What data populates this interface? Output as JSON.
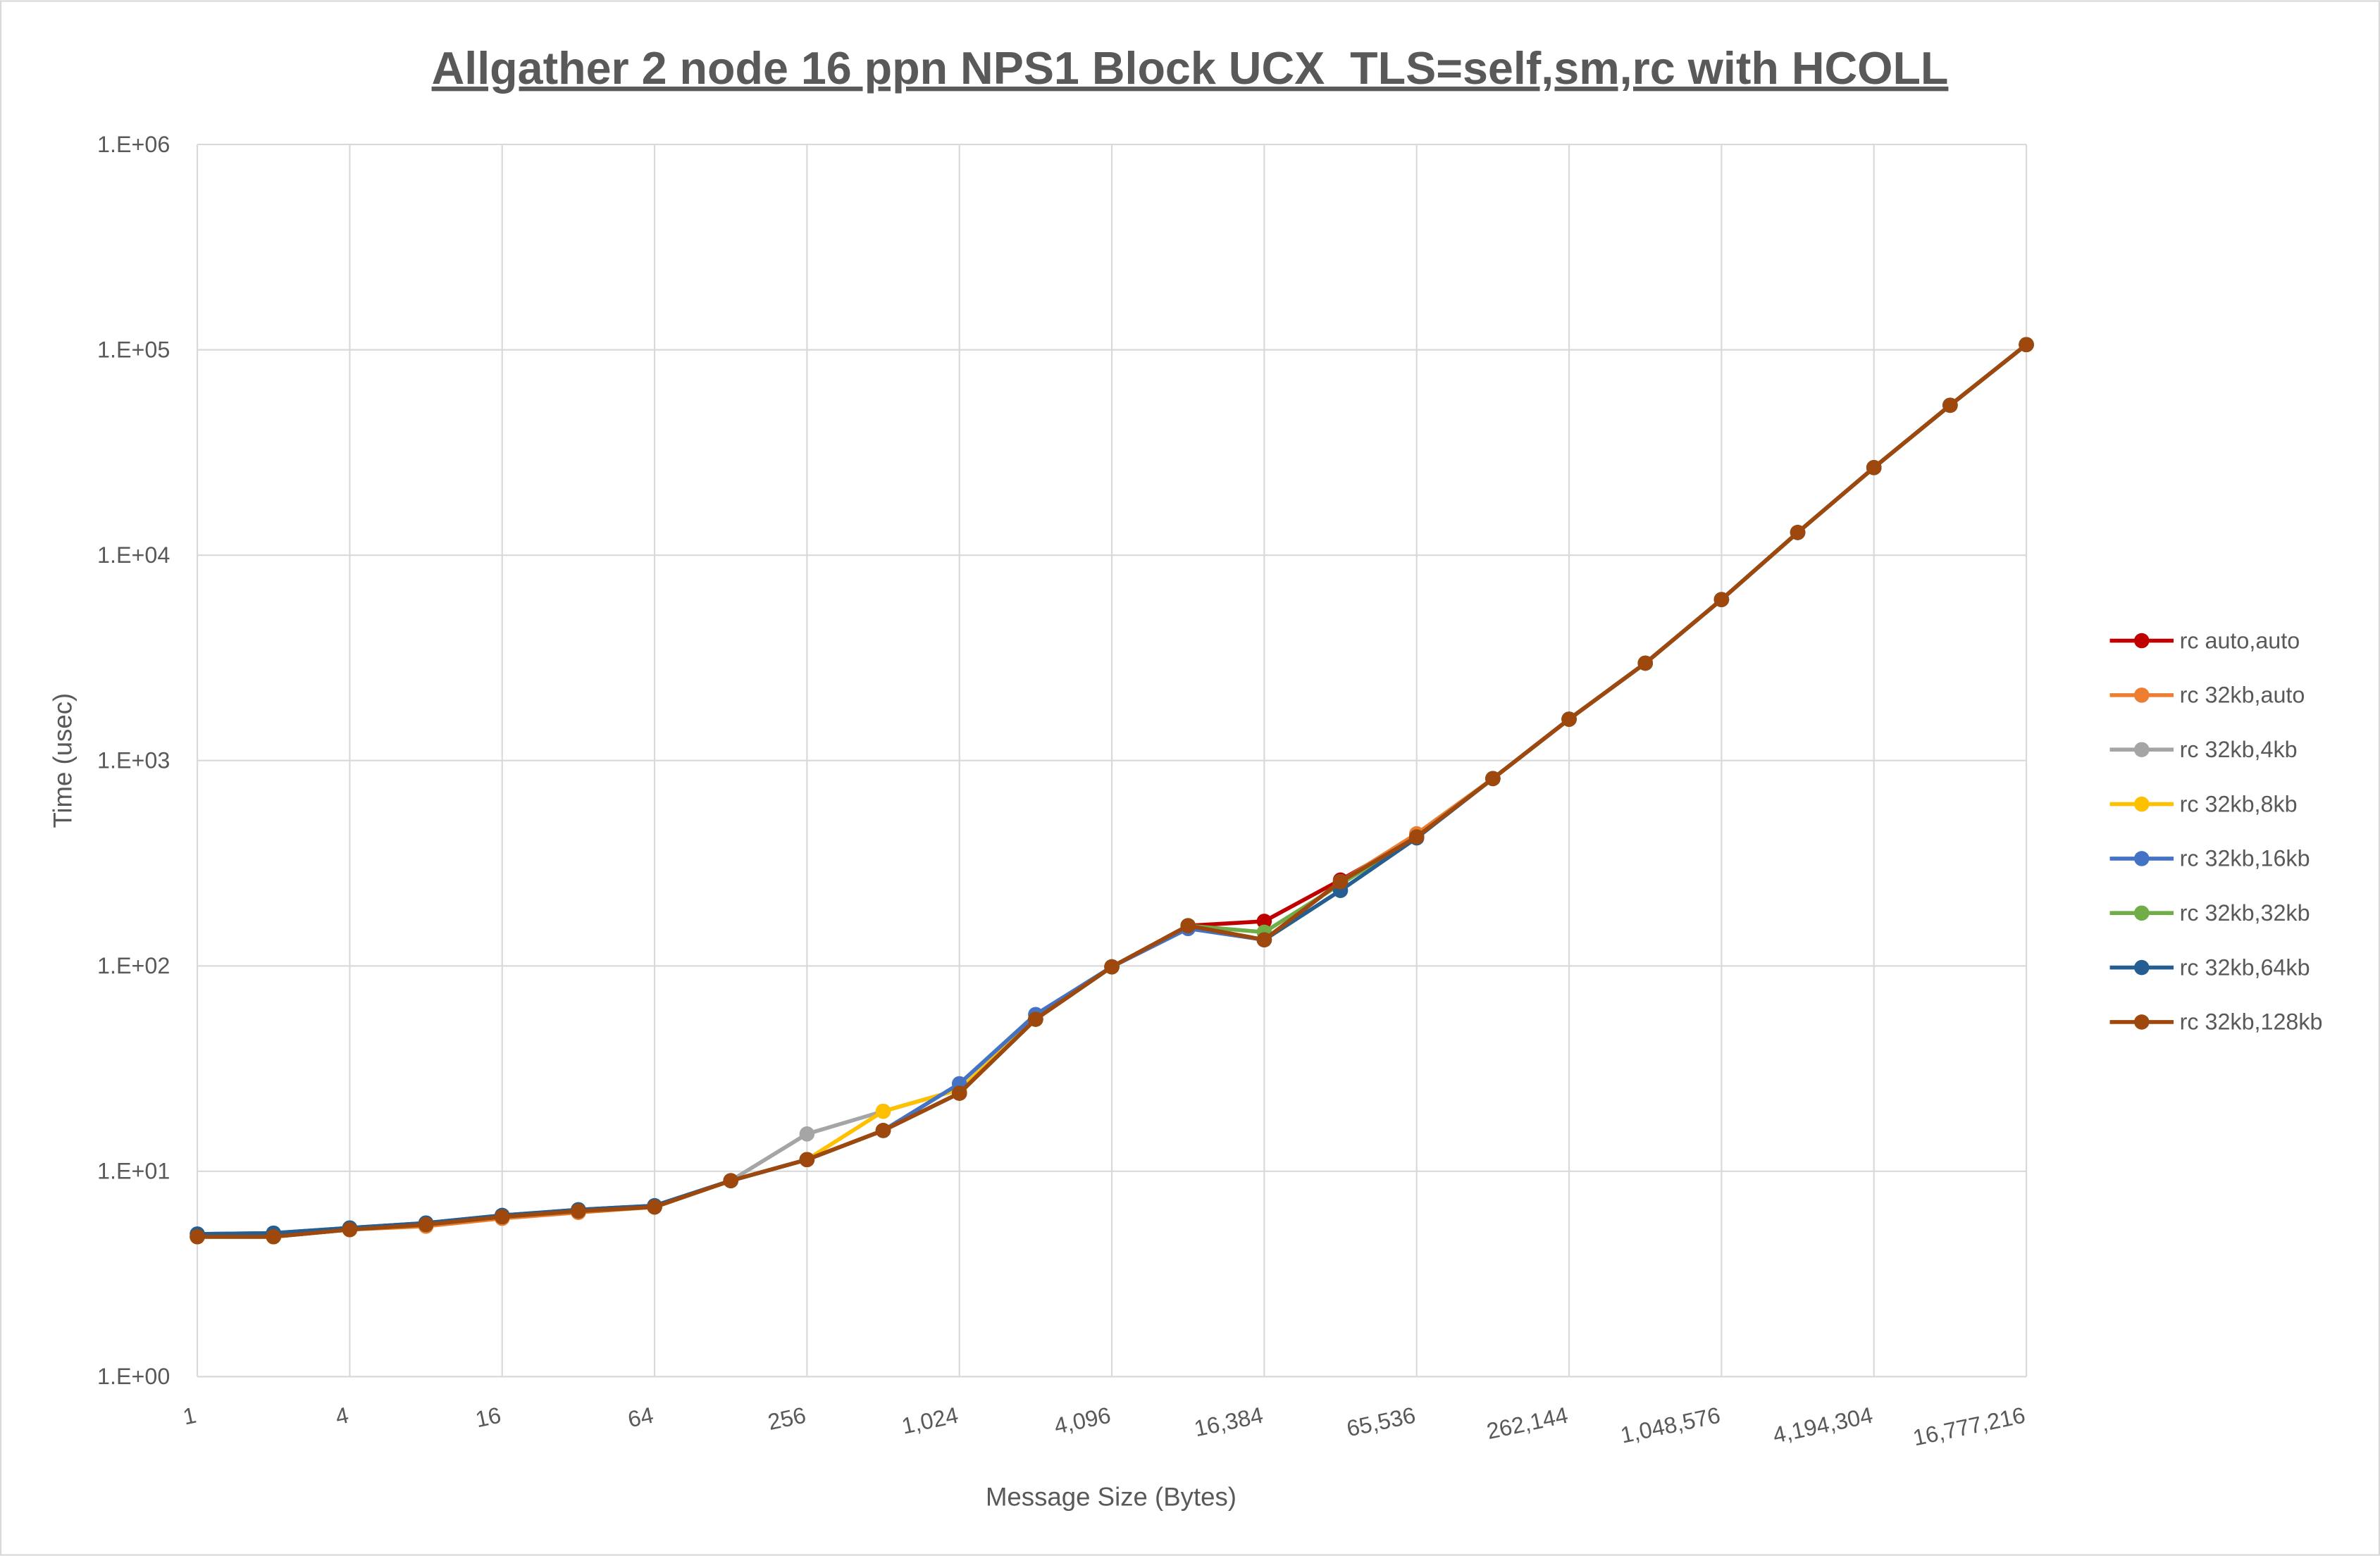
{
  "chart_data": {
    "type": "line",
    "title": "Allgather 2 node 16 ppn NPS1 Block UCX_TLS=self,sm,rc with HCOLL",
    "xlabel": "Message Size (Bytes)",
    "ylabel": "Time (usec)",
    "x_scale": "log2",
    "y_scale": "log10",
    "ylim": [
      1,
      1000000
    ],
    "grid": true,
    "legend_position": "right",
    "x": [
      1,
      2,
      4,
      8,
      16,
      32,
      64,
      128,
      256,
      512,
      1024,
      2048,
      4096,
      8192,
      16384,
      32768,
      65536,
      131072,
      262144,
      524288,
      1048576,
      2097152,
      4194304,
      8388608,
      16777216
    ],
    "x_tick_labels": [
      "1",
      "4",
      "16",
      "64",
      "256",
      "1,024",
      "4,096",
      "16,384",
      "65,536",
      "262,144",
      "1,048,576",
      "4,194,304",
      "16,777,216"
    ],
    "y_tick_labels": [
      "1.E+00",
      "1.E+01",
      "1.E+02",
      "1.E+03",
      "1.E+04",
      "1.E+05",
      "1.E+06"
    ],
    "series": [
      {
        "name": "rc auto,auto",
        "color": "#C00000",
        "values": [
          4.8,
          4.8,
          5.2,
          5.5,
          6.0,
          6.4,
          6.7,
          9.0,
          11.4,
          15.8,
          24,
          55,
          99,
          157,
          165,
          262,
          425,
          817,
          1590,
          2980,
          6080,
          12900,
          26700,
          53700,
          106000
        ]
      },
      {
        "name": "rc 32kb,auto",
        "color": "#ED7D31",
        "values": [
          4.8,
          4.8,
          5.2,
          5.4,
          5.9,
          6.3,
          6.7,
          9.0,
          11.4,
          15.8,
          24,
          55,
          99,
          157,
          134,
          257,
          440,
          817,
          1590,
          2980,
          6080,
          12900,
          26700,
          53700,
          106000
        ]
      },
      {
        "name": "rc 32kb,4kb",
        "color": "#A5A5A5",
        "values": [
          4.8,
          4.8,
          5.2,
          5.5,
          6.0,
          6.4,
          6.7,
          9.0,
          15.2,
          19.6,
          25,
          55,
          99,
          157,
          134,
          257,
          425,
          817,
          1590,
          2980,
          6080,
          12900,
          26700,
          53700,
          106000
        ]
      },
      {
        "name": "rc 32kb,8kb",
        "color": "#FFC000",
        "values": [
          4.8,
          4.8,
          5.2,
          5.5,
          6.0,
          6.4,
          6.7,
          9.0,
          11.4,
          19.6,
          25,
          55,
          99,
          157,
          134,
          257,
          425,
          817,
          1590,
          2980,
          6080,
          12900,
          26700,
          53700,
          106000
        ]
      },
      {
        "name": "rc 32kb,16kb",
        "color": "#4472C4",
        "values": [
          4.95,
          5.0,
          5.3,
          5.6,
          6.1,
          6.5,
          6.8,
          9.0,
          11.4,
          15.8,
          26.7,
          58,
          99,
          152,
          134,
          257,
          425,
          817,
          1590,
          2980,
          6080,
          12900,
          26700,
          53700,
          106000
        ]
      },
      {
        "name": "rc 32kb,32kb",
        "color": "#70AD47",
        "values": [
          4.8,
          4.8,
          5.2,
          5.5,
          6.0,
          6.4,
          6.7,
          9.0,
          11.4,
          15.8,
          24,
          55,
          99,
          157,
          146,
          250,
          425,
          817,
          1590,
          2980,
          6080,
          12900,
          26700,
          53700,
          106000
        ]
      },
      {
        "name": "rc 32kb,64kb",
        "color": "#255E91",
        "values": [
          4.95,
          5.0,
          5.3,
          5.6,
          6.1,
          6.5,
          6.8,
          9.0,
          11.4,
          15.8,
          24,
          55,
          99,
          157,
          134,
          233,
          420,
          817,
          1590,
          2980,
          6080,
          12900,
          26700,
          53700,
          106000
        ]
      },
      {
        "name": "rc 32kb,128kb",
        "color": "#9E480E",
        "values": [
          4.8,
          4.8,
          5.2,
          5.5,
          6.0,
          6.4,
          6.7,
          9.0,
          11.4,
          15.8,
          24,
          55,
          99,
          157,
          134,
          257,
          425,
          817,
          1590,
          2980,
          6080,
          12900,
          26700,
          53700,
          106000
        ]
      }
    ]
  }
}
